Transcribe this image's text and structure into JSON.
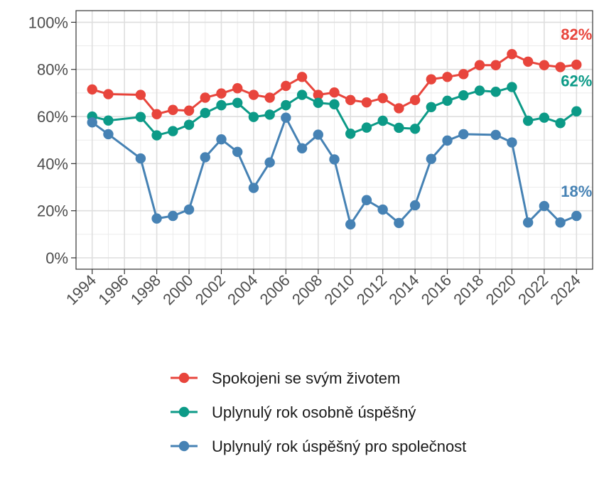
{
  "chart_data": {
    "type": "line",
    "title": "",
    "xlabel": "",
    "ylabel": "",
    "ylim": [
      0,
      100
    ],
    "xlim": [
      1993,
      2025
    ],
    "y_ticks": [
      0,
      20,
      40,
      60,
      80,
      100
    ],
    "y_tick_labels": [
      "0%",
      "20%",
      "40%",
      "60%",
      "80%",
      "100%"
    ],
    "x_ticks": [
      1994,
      1996,
      1998,
      2000,
      2002,
      2004,
      2006,
      2008,
      2010,
      2012,
      2014,
      2016,
      2018,
      2020,
      2022,
      2024
    ],
    "x_tick_labels": [
      "1994",
      "1996",
      "1998",
      "2000",
      "2002",
      "2004",
      "2006",
      "2008",
      "2010",
      "2012",
      "2014",
      "2016",
      "2018",
      "2020",
      "2022",
      "2024"
    ],
    "grid": true,
    "legend_position": "bottom",
    "series": [
      {
        "name": "Spokojeni se svým životem",
        "color": "#e8453c",
        "end_label": "82%",
        "points": [
          [
            1994,
            71.5
          ],
          [
            1995,
            69.5
          ],
          [
            1997,
            69.2
          ],
          [
            1998,
            61
          ],
          [
            1999,
            62.8
          ],
          [
            2000,
            62.5
          ],
          [
            2001,
            68
          ],
          [
            2002,
            69.8
          ],
          [
            2003,
            72
          ],
          [
            2004,
            69.2
          ],
          [
            2005,
            68
          ],
          [
            2006,
            73
          ],
          [
            2007,
            76.8
          ],
          [
            2008,
            69.2
          ],
          [
            2009,
            70.2
          ],
          [
            2010,
            67
          ],
          [
            2011,
            66
          ],
          [
            2012,
            67.8
          ],
          [
            2013,
            63.5
          ],
          [
            2014,
            67
          ],
          [
            2015,
            75.8
          ],
          [
            2016,
            76.8
          ],
          [
            2017,
            78
          ],
          [
            2018,
            81.8
          ],
          [
            2019,
            81.8
          ],
          [
            2020,
            86.5
          ],
          [
            2021,
            83.3
          ],
          [
            2022,
            81.8
          ],
          [
            2023,
            81
          ],
          [
            2024,
            82
          ]
        ]
      },
      {
        "name": "Uplynulý rok osobně úspěšný",
        "color": "#0c9a87",
        "end_label": "62%",
        "points": [
          [
            1994,
            60
          ],
          [
            1995,
            58.3
          ],
          [
            1997,
            59.8
          ],
          [
            1998,
            52
          ],
          [
            1999,
            53.8
          ],
          [
            2000,
            56.5
          ],
          [
            2001,
            61.5
          ],
          [
            2002,
            64.8
          ],
          [
            2003,
            65.8
          ],
          [
            2004,
            59.8
          ],
          [
            2005,
            60.8
          ],
          [
            2006,
            64.8
          ],
          [
            2007,
            69.2
          ],
          [
            2008,
            65.8
          ],
          [
            2009,
            65.2
          ],
          [
            2010,
            52.7
          ],
          [
            2011,
            55.3
          ],
          [
            2012,
            58.2
          ],
          [
            2013,
            55.2
          ],
          [
            2014,
            54.8
          ],
          [
            2015,
            64
          ],
          [
            2016,
            66.7
          ],
          [
            2017,
            69
          ],
          [
            2018,
            71
          ],
          [
            2019,
            70.5
          ],
          [
            2020,
            72.5
          ],
          [
            2021,
            58.2
          ],
          [
            2022,
            59.5
          ],
          [
            2023,
            57.2
          ],
          [
            2024,
            62.2
          ]
        ]
      },
      {
        "name": "Uplynulý rok úspěšný pro společnost",
        "color": "#4682b4",
        "end_label": "18%",
        "points": [
          [
            1994,
            57.5
          ],
          [
            1995,
            52.5
          ],
          [
            1997,
            42.2
          ],
          [
            1998,
            16.7
          ],
          [
            1999,
            17.8
          ],
          [
            2000,
            20.5
          ],
          [
            2001,
            42.7
          ],
          [
            2002,
            50.3
          ],
          [
            2003,
            45
          ],
          [
            2004,
            29.7
          ],
          [
            2005,
            40.5
          ],
          [
            2006,
            59.5
          ],
          [
            2007,
            46.5
          ],
          [
            2008,
            52.3
          ],
          [
            2009,
            41.8
          ],
          [
            2010,
            14.2
          ],
          [
            2011,
            24.5
          ],
          [
            2012,
            20.5
          ],
          [
            2013,
            14.8
          ],
          [
            2014,
            22.3
          ],
          [
            2015,
            42
          ],
          [
            2016,
            49.8
          ],
          [
            2017,
            52.5
          ],
          [
            2019,
            52.2
          ],
          [
            2020,
            49
          ],
          [
            2021,
            15
          ],
          [
            2022,
            22
          ],
          [
            2023,
            15
          ],
          [
            2024,
            17.8
          ]
        ]
      }
    ]
  }
}
